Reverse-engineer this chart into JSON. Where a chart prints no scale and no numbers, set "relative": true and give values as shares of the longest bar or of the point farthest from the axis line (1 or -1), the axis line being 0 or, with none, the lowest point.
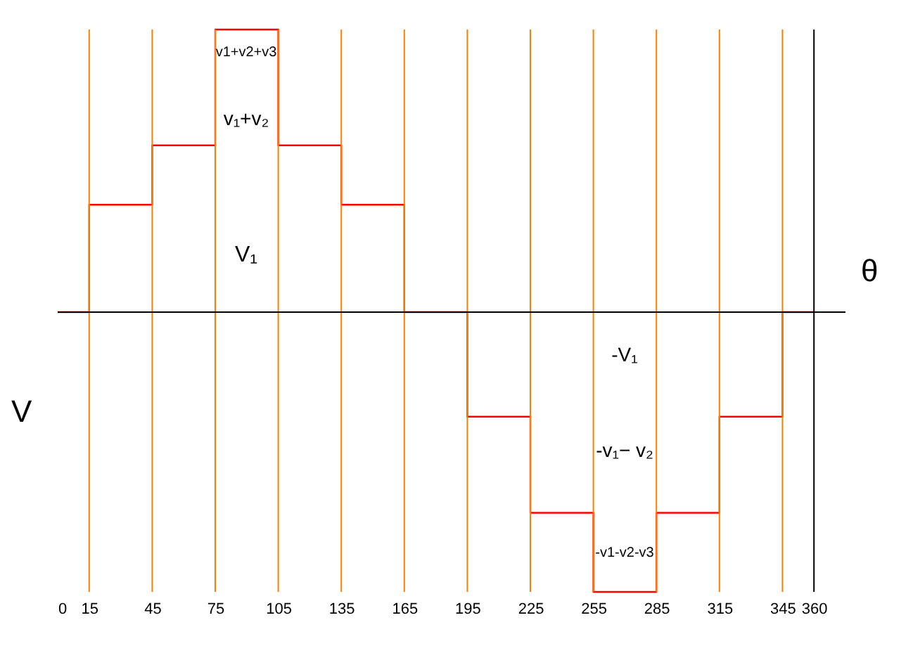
{
  "chart_data": {
    "type": "step",
    "relative": true,
    "xlabel": "θ",
    "ylabel": "V",
    "x": [
      0,
      15,
      45,
      75,
      105,
      135,
      165,
      195,
      225,
      255,
      285,
      315,
      345,
      360
    ],
    "series": [
      {
        "color": "#ff0000",
        "values": [
          0,
          0.38,
          0.59,
          1,
          0.59,
          0.38,
          0,
          -0.37,
          -0.71,
          -0.99,
          -0.71,
          -0.37,
          0,
          0
        ]
      }
    ],
    "xlim": [
      0,
      375
    ],
    "xticks": [
      0,
      15,
      45,
      75,
      105,
      135,
      165,
      195,
      225,
      255,
      285,
      315,
      345,
      360
    ],
    "ref_lines": [
      {
        "axis": "y",
        "value": 0,
        "color": "#000000"
      },
      {
        "axis": "x",
        "value": 15,
        "color": "#ff8000"
      },
      {
        "axis": "x",
        "value": 45,
        "color": "#ff8000"
      },
      {
        "axis": "x",
        "value": 75,
        "color": "#ff8000"
      },
      {
        "axis": "x",
        "value": 105,
        "color": "#ff8000"
      },
      {
        "axis": "x",
        "value": 135,
        "color": "#ff8000"
      },
      {
        "axis": "x",
        "value": 165,
        "color": "#ff8000"
      },
      {
        "axis": "x",
        "value": 195,
        "color": "#ff8000"
      },
      {
        "axis": "x",
        "value": 225,
        "color": "#ff8000"
      },
      {
        "axis": "x",
        "value": 255,
        "color": "#ff8000"
      },
      {
        "axis": "x",
        "value": 285,
        "color": "#ff8000"
      },
      {
        "axis": "x",
        "value": 315,
        "color": "#ff8000"
      },
      {
        "axis": "x",
        "value": 345,
        "color": "#ff8000"
      },
      {
        "axis": "x",
        "value": 360,
        "color": "#000000"
      }
    ],
    "annotations": [
      "v1+v2+v3",
      "v₁+v₂",
      "V₁",
      "-V₁",
      "-v₁− v₂",
      "-v1-v2-v3"
    ],
    "grid": false,
    "legend": false
  }
}
